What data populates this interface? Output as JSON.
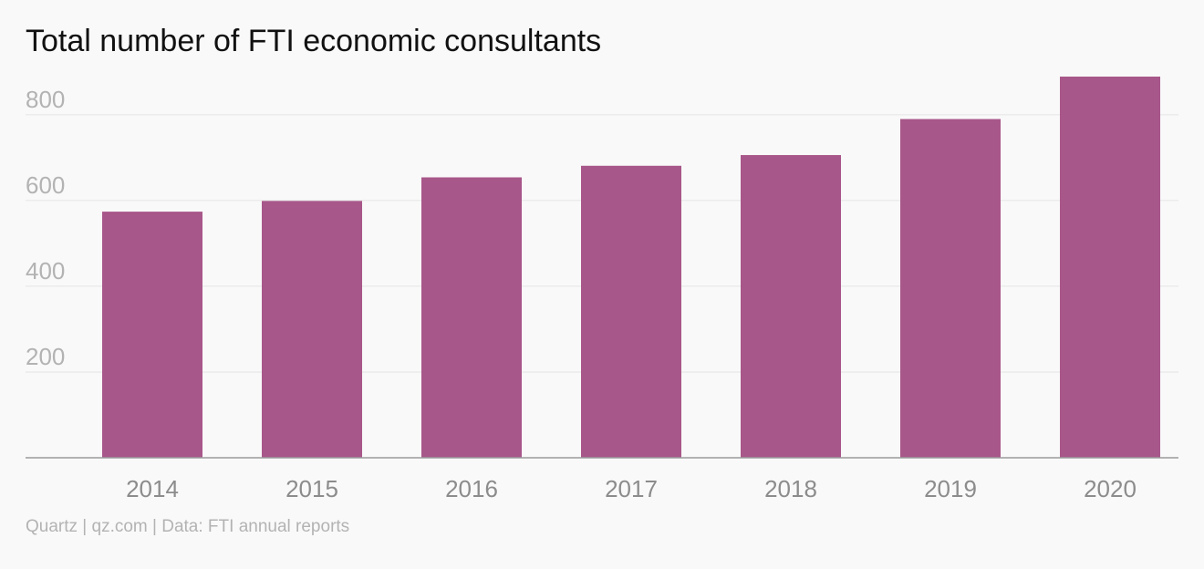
{
  "chart_data": {
    "type": "bar",
    "title": "Total number of FTI economic consultants",
    "categories": [
      "2014",
      "2015",
      "2016",
      "2017",
      "2018",
      "2019",
      "2020"
    ],
    "values": [
      574,
      599,
      654,
      681,
      706,
      790,
      889
    ],
    "ylim": [
      0,
      889
    ],
    "yticks": [
      200,
      400,
      600,
      800
    ],
    "xlabel": "",
    "ylabel": "",
    "grid": true,
    "legend": "none",
    "bar_color": "#a8578a"
  },
  "source": "Quartz | qz.com | Data: FTI annual reports"
}
